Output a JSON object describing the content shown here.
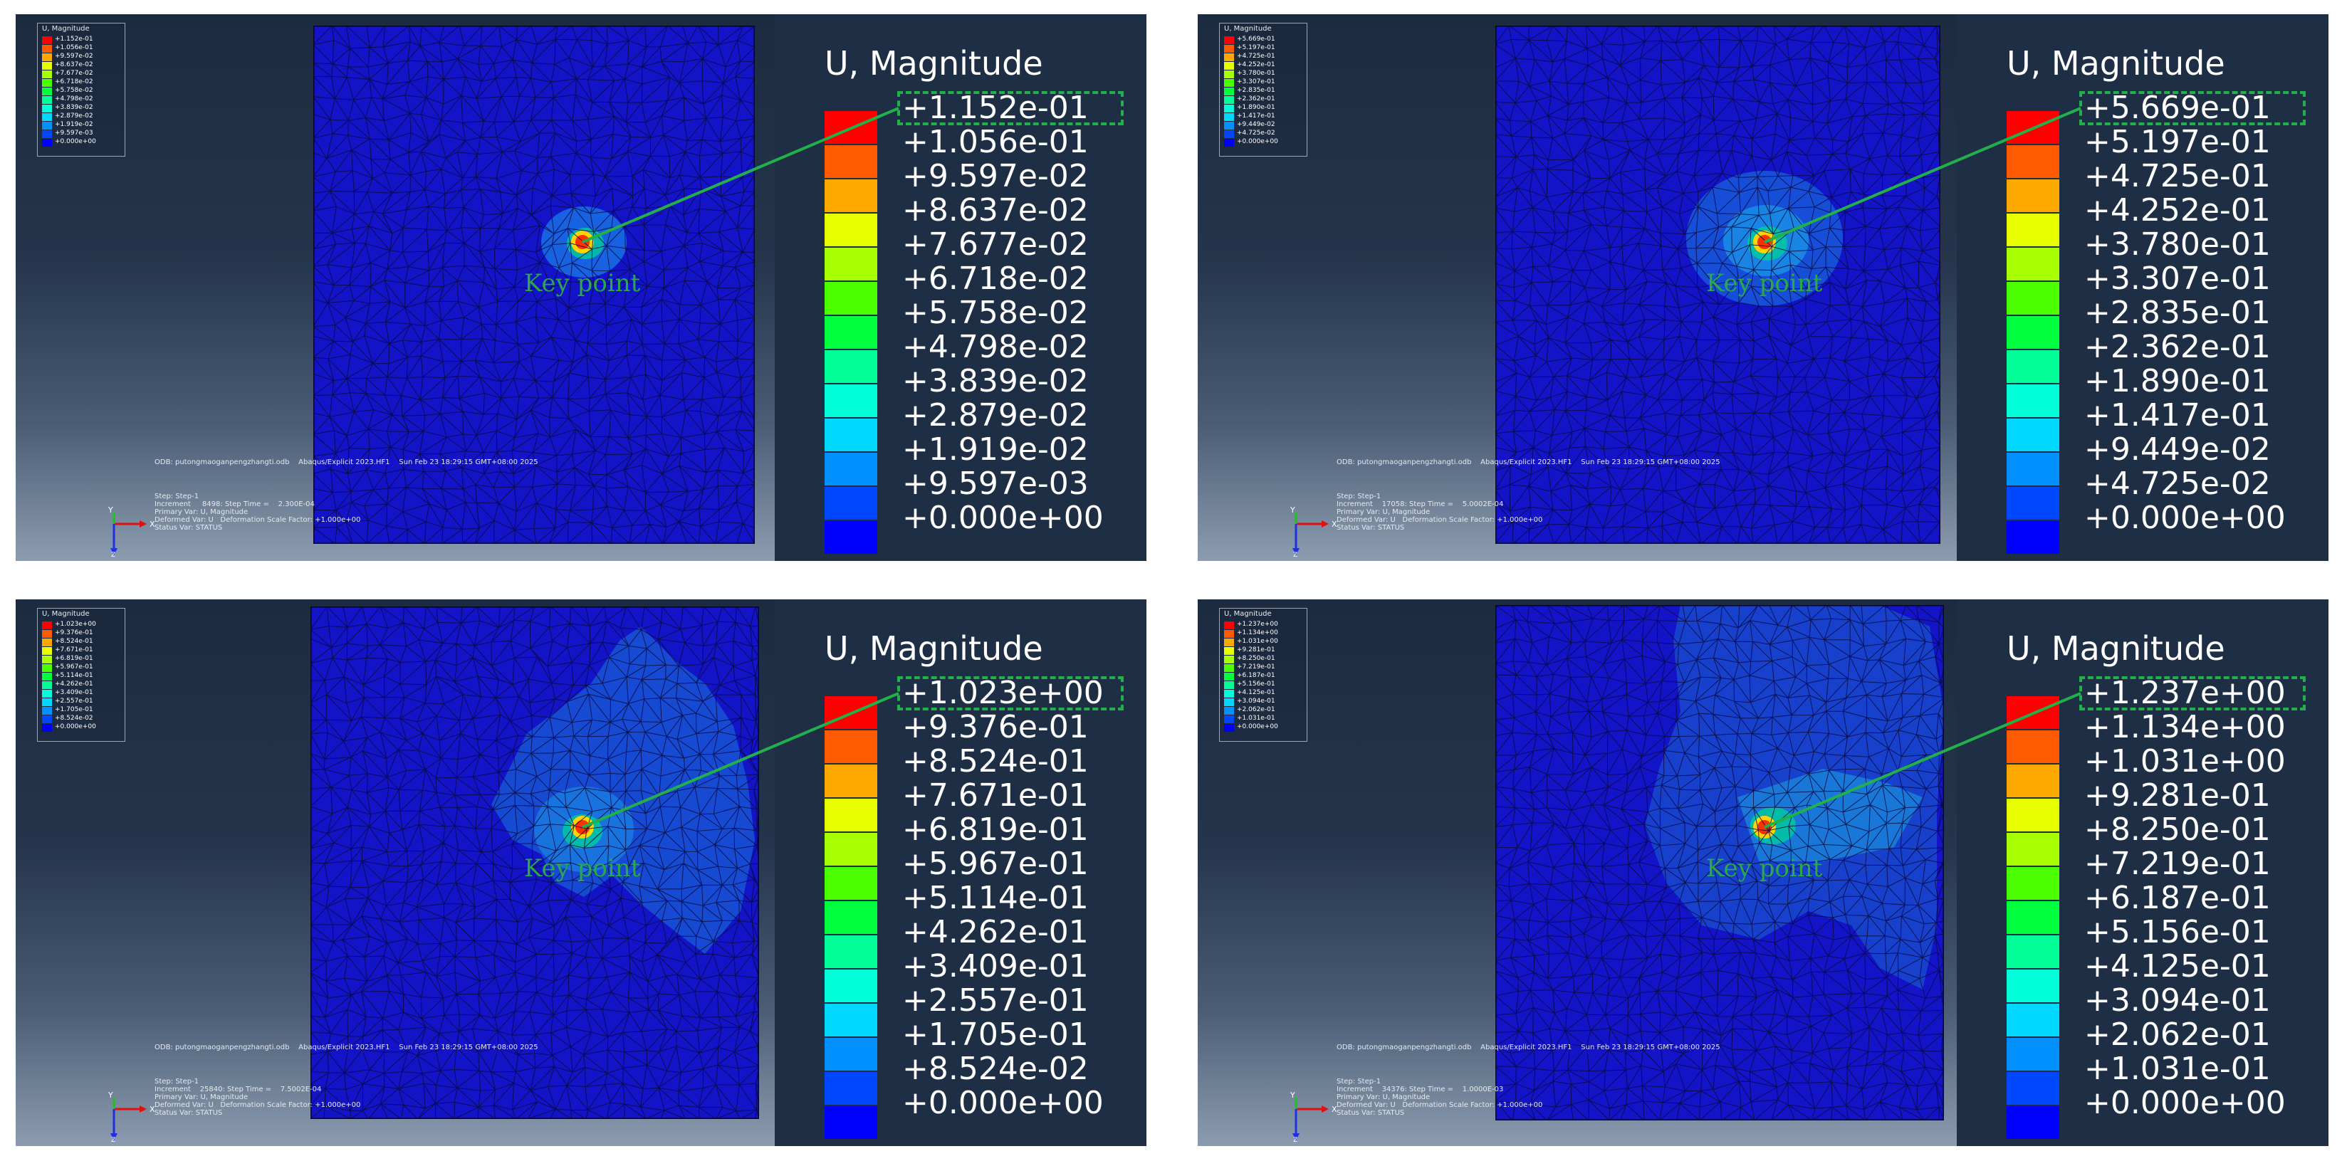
{
  "legend_colors": [
    "#ff0000",
    "#ff5a00",
    "#ffa800",
    "#e8ff00",
    "#a8ff00",
    "#4cff00",
    "#00ff3c",
    "#00ff96",
    "#00ffd8",
    "#00d8ff",
    "#0090ff",
    "#0048ff",
    "#0000ff"
  ],
  "panels": [
    {
      "mini_title": "U, Magnitude",
      "title": "U, Magnitude",
      "legend_values": [
        "+1.152e-01",
        "+1.056e-01",
        "+9.597e-02",
        "+8.637e-02",
        "+7.677e-02",
        "+6.718e-02",
        "+5.758e-02",
        "+4.798e-02",
        "+3.839e-02",
        "+2.879e-02",
        "+1.919e-02",
        "+9.597e-03",
        "+0.000e+00"
      ],
      "key_point_label": "Key point",
      "odb_line": "ODB: putongmaoganpengzhangti.odb    Abaqus/Explicit 2023.HF1    Sun Feb 23 18:29:15 GMT+08:00 2025",
      "step_lines": [
        "Step: Step-1",
        "Increment     8498: Step Time =    2.300E-04",
        "Primary Var: U, Magnitude",
        "Deformed Var: U   Deformation Scale Factor: +1.000e+00",
        "Status Var: STATUS"
      ]
    },
    {
      "mini_title": "U, Magnitude",
      "title": "U, Magnitude",
      "legend_values": [
        "+5.669e-01",
        "+5.197e-01",
        "+4.725e-01",
        "+4.252e-01",
        "+3.780e-01",
        "+3.307e-01",
        "+2.835e-01",
        "+2.362e-01",
        "+1.890e-01",
        "+1.417e-01",
        "+9.449e-02",
        "+4.725e-02",
        "+0.000e+00"
      ],
      "key_point_label": "Key point",
      "odb_line": "ODB: putongmaoganpengzhangti.odb    Abaqus/Explicit 2023.HF1    Sun Feb 23 18:29:15 GMT+08:00 2025",
      "step_lines": [
        "Step: Step-1",
        "Increment    17058: Step Time =    5.0002E-04",
        "Primary Var: U, Magnitude",
        "Deformed Var: U   Deformation Scale Factor: +1.000e+00",
        "Status Var: STATUS"
      ]
    },
    {
      "mini_title": "U, Magnitude",
      "title": "U, Magnitude",
      "legend_values": [
        "+1.023e+00",
        "+9.376e-01",
        "+8.524e-01",
        "+7.671e-01",
        "+6.819e-01",
        "+5.967e-01",
        "+5.114e-01",
        "+4.262e-01",
        "+3.409e-01",
        "+2.557e-01",
        "+1.705e-01",
        "+8.524e-02",
        "+0.000e+00"
      ],
      "key_point_label": "Key point",
      "odb_line": "ODB: putongmaoganpengzhangti.odb    Abaqus/Explicit 2023.HF1    Sun Feb 23 18:29:15 GMT+08:00 2025",
      "step_lines": [
        "Step: Step-1",
        "Increment    25840: Step Time =    7.5002E-04",
        "Primary Var: U, Magnitude",
        "Deformed Var: U   Deformation Scale Factor: +1.000e+00",
        "Status Var: STATUS"
      ]
    },
    {
      "mini_title": "U, Magnitude",
      "title": "U, Magnitude",
      "legend_values": [
        "+1.237e+00",
        "+1.134e+00",
        "+1.031e+00",
        "+9.281e-01",
        "+8.250e-01",
        "+7.219e-01",
        "+6.187e-01",
        "+5.156e-01",
        "+4.125e-01",
        "+3.094e-01",
        "+2.062e-01",
        "+1.031e-01",
        "+0.000e+00"
      ],
      "key_point_label": "Key point",
      "odb_line": "ODB: putongmaoganpengzhangti.odb    Abaqus/Explicit 2023.HF1    Sun Feb 23 18:29:15 GMT+08:00 2025",
      "step_lines": [
        "Step: Step-1",
        "Increment    34376: Step Time =    1.0000E-03",
        "Primary Var: U, Magnitude",
        "Deformed Var: U   Deformation Scale Factor: +1.000e+00",
        "Status Var: STATUS"
      ]
    }
  ]
}
